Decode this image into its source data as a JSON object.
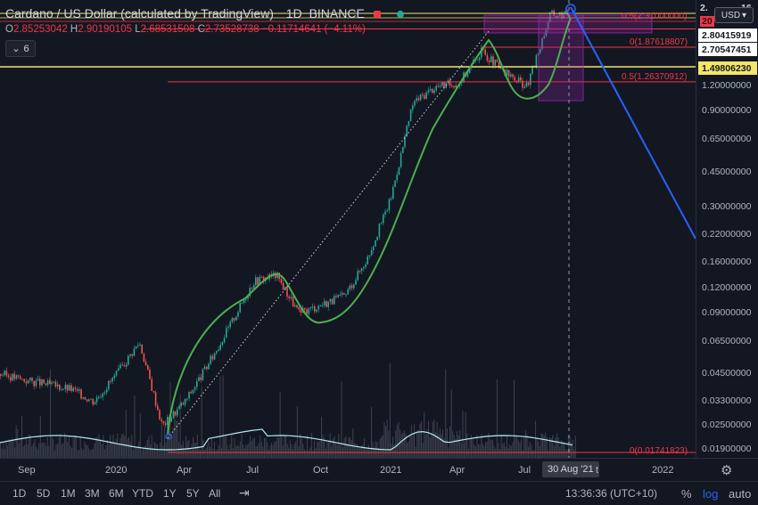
{
  "header": {
    "title": "Cardano / US Dollar (calculated by TradingView)",
    "interval": "1D",
    "exchange": "BINANCE",
    "ohlc": {
      "o_label": "O",
      "o_value": "2.85253042",
      "h_label": "H",
      "h_value": "2.90190105",
      "l_label": "L",
      "l_value": "2.68531508",
      "c_label": "C",
      "c_value": "2.73528738",
      "change": "−0.11714641 (−4.11%)"
    },
    "indicator_count": "6"
  },
  "price_scale": {
    "currency": "USD",
    "top_partial": "2.",
    "top_partial_2": "16",
    "top_partial_3": "20",
    "ticks": [
      "1.20000000",
      "0.90000000",
      "0.65000000",
      "0.45000000",
      "0.30000000",
      "0.22000000",
      "0.16000000",
      "0.12000000",
      "0.09000000",
      "0.06500000",
      "0.04500000",
      "0.03300000",
      "0.02500000",
      "0.01900000"
    ],
    "badges": [
      {
        "text": "2.80415919",
        "color": "#ffffff"
      },
      {
        "text": "2.70547451",
        "color": "#ffffff"
      },
      {
        "text": "1.49806230",
        "color": "#f5e56b"
      }
    ]
  },
  "fib_labels": [
    {
      "text": "0.5(2.31000000)"
    },
    {
      "text": "0(1.87618807)"
    },
    {
      "text": "0.5(1.26370912)"
    },
    {
      "text": "0(0.01741823)"
    }
  ],
  "time_axis": {
    "labels": [
      "Sep",
      "2020",
      "Apr",
      "Jul",
      "Oct",
      "2021",
      "Apr",
      "Jul",
      "t",
      "2022"
    ],
    "cursor_label": "30 Aug '21"
  },
  "toolbar": {
    "ranges": [
      "1D",
      "5D",
      "1M",
      "3M",
      "6M",
      "YTD",
      "1Y",
      "5Y",
      "All"
    ],
    "clock": "13:36:36 (UTC+10)",
    "percent": "%",
    "log": "log",
    "auto": "auto"
  },
  "colors": {
    "background": "#131722",
    "up": "#26a69a",
    "down": "#ef5350",
    "fib_red": "#f23645",
    "fib_yellow": "#f5e56b",
    "curve": "#4caf50",
    "projection": "#2962ff",
    "volume_ma": "#b2ebf2",
    "box": "#9c27b0"
  },
  "chart_data": {
    "type": "candlestick",
    "title": "Cardano / US Dollar (calculated by TradingView)",
    "symbol": "ADAUSD",
    "exchange": "BINANCE",
    "interval": "1D",
    "y_scale": "log",
    "ylim": [
      0.0175,
      2.9
    ],
    "x_range": [
      "2019-08",
      "2022-03"
    ],
    "series": [
      {
        "name": "price_close_approx",
        "points": [
          {
            "x": "2019-08",
            "y": 0.045
          },
          {
            "x": "2019-09",
            "y": 0.042
          },
          {
            "x": "2019-10",
            "y": 0.04
          },
          {
            "x": "2019-11",
            "y": 0.038
          },
          {
            "x": "2019-12",
            "y": 0.033
          },
          {
            "x": "2020-01",
            "y": 0.045
          },
          {
            "x": "2020-02",
            "y": 0.065
          },
          {
            "x": "2020-03",
            "y": 0.025
          },
          {
            "x": "2020-04",
            "y": 0.033
          },
          {
            "x": "2020-05",
            "y": 0.05
          },
          {
            "x": "2020-06",
            "y": 0.08
          },
          {
            "x": "2020-07",
            "y": 0.13
          },
          {
            "x": "2020-08",
            "y": 0.14
          },
          {
            "x": "2020-09",
            "y": 0.09
          },
          {
            "x": "2020-10",
            "y": 0.1
          },
          {
            "x": "2020-11",
            "y": 0.11
          },
          {
            "x": "2020-12",
            "y": 0.17
          },
          {
            "x": "2021-01",
            "y": 0.33
          },
          {
            "x": "2021-02",
            "y": 1.0
          },
          {
            "x": "2021-03",
            "y": 1.2
          },
          {
            "x": "2021-04",
            "y": 1.25
          },
          {
            "x": "2021-05",
            "y": 1.8
          },
          {
            "x": "2021-06",
            "y": 1.4
          },
          {
            "x": "2021-07",
            "y": 1.2
          },
          {
            "x": "2021-08",
            "y": 2.73
          }
        ]
      }
    ],
    "last_ohlc": {
      "open": 2.85253042,
      "high": 2.90190105,
      "low": 2.68531508,
      "close": 2.73528738,
      "change": -0.11714641,
      "change_pct": -4.11
    },
    "horizontal_levels": [
      {
        "label": "0.5(2.31000000)",
        "value": 2.31
      },
      {
        "label": "0(1.87618807)",
        "value": 1.87618807
      },
      {
        "label": "0.5(1.26370912)",
        "value": 1.26370912
      },
      {
        "label": "0(0.01741823)",
        "value": 0.01741823
      },
      {
        "value": 1.4980623
      },
      {
        "value": 2.80415919
      },
      {
        "value": 2.70547451
      }
    ],
    "cursor_date": "30 Aug '21"
  }
}
